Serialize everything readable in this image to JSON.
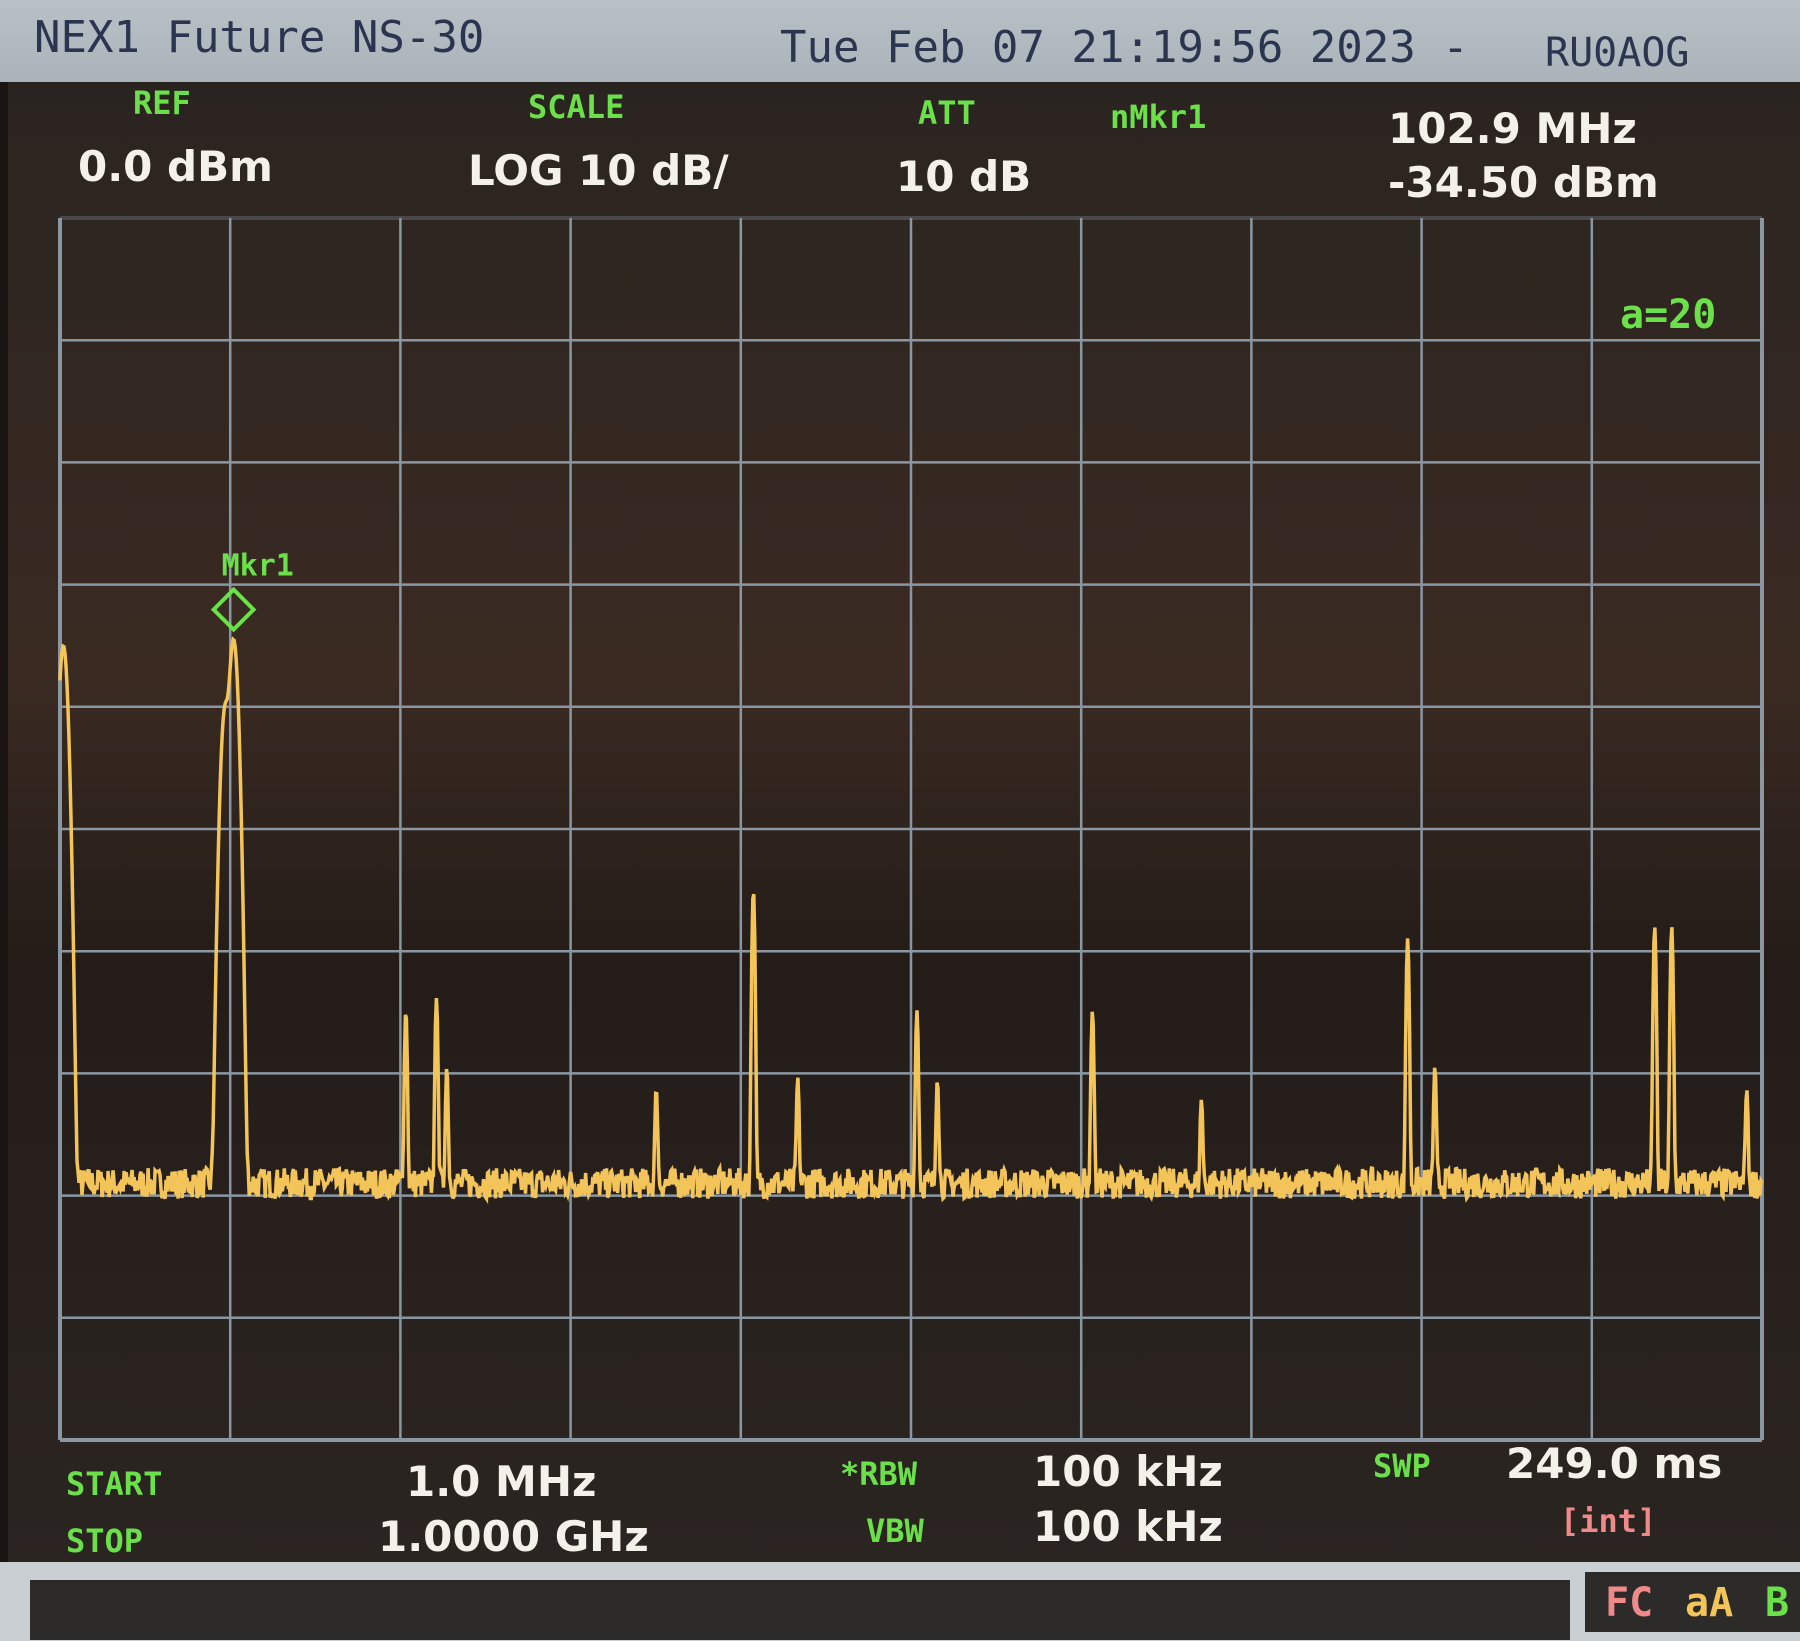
{
  "header": {
    "title": "NEX1 Future NS-30",
    "datetime": "Tue Feb 07 21:19:56 2023 -",
    "callsign": "RU0AOG"
  },
  "settings": {
    "ref_label": "REF",
    "ref_value": "0.0 dBm",
    "scale_label": "SCALE",
    "scale_value": "LOG 10 dB/",
    "att_label": "ATT",
    "att_value": "10 dB",
    "marker_label": "nMkr1",
    "marker_freq": "102.9 MHz",
    "marker_level": "-34.50 dBm",
    "avg": "a=20",
    "start_label": "START",
    "start_value": "1.0 MHz",
    "stop_label": "STOP",
    "stop_value": "1.0000 GHz",
    "rbw_label": "*RBW",
    "rbw_value": "100 kHz",
    "vbw_label": "VBW",
    "vbw_value": "100 kHz",
    "swp_label": "SWP",
    "swp_value": "249.0 ms",
    "swp_mode": "[int]"
  },
  "status": {
    "fc": "FC",
    "aa": "aA",
    "b": "B"
  },
  "colors": {
    "trace": "#f2c45a",
    "grid": "#8a97a3",
    "label": "#6be04a",
    "value": "#f4f1ea",
    "int": "#f08a8a"
  },
  "chart_data": {
    "type": "line",
    "xlim_mhz": [
      1,
      1000
    ],
    "ylim_dbm": [
      -100,
      0
    ],
    "grid": true,
    "x_divisions": 10,
    "y_divisions": 10,
    "noise_floor_dbm": -79,
    "marker": {
      "label": "Mkr1",
      "freq_mhz": 102.9,
      "level_dbm": -34.5
    },
    "peaks": [
      {
        "freq_mhz": 3,
        "level_dbm": -35
      },
      {
        "freq_mhz": 98,
        "level_dbm": -40
      },
      {
        "freq_mhz": 102.9,
        "level_dbm": -34.5
      },
      {
        "freq_mhz": 204,
        "level_dbm": -65
      },
      {
        "freq_mhz": 222,
        "level_dbm": -64
      },
      {
        "freq_mhz": 228,
        "level_dbm": -70
      },
      {
        "freq_mhz": 351,
        "level_dbm": -72
      },
      {
        "freq_mhz": 408,
        "level_dbm": -55
      },
      {
        "freq_mhz": 434,
        "level_dbm": -71
      },
      {
        "freq_mhz": 504,
        "level_dbm": -65
      },
      {
        "freq_mhz": 516,
        "level_dbm": -71
      },
      {
        "freq_mhz": 607,
        "level_dbm": -65
      },
      {
        "freq_mhz": 671,
        "level_dbm": -73
      },
      {
        "freq_mhz": 792,
        "level_dbm": -59
      },
      {
        "freq_mhz": 808,
        "level_dbm": -70
      },
      {
        "freq_mhz": 937,
        "level_dbm": -58
      },
      {
        "freq_mhz": 947,
        "level_dbm": -58
      },
      {
        "freq_mhz": 991,
        "level_dbm": -72
      }
    ]
  }
}
